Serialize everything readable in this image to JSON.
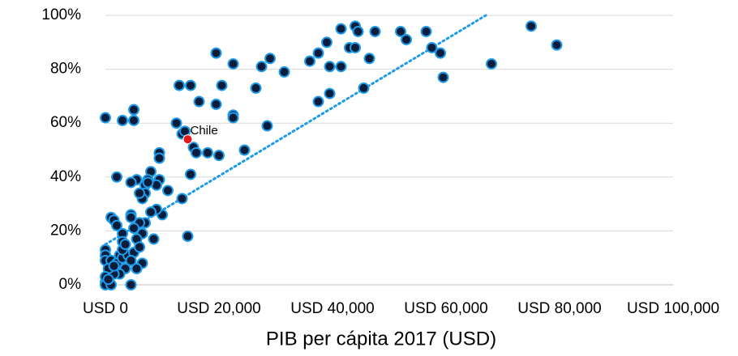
{
  "chart_data": {
    "type": "scatter",
    "x_label": "PIB per cápita 2017 (USD)",
    "x": [
      0,
      3000,
      5000,
      5000,
      2000,
      13000,
      15000,
      19500,
      22500,
      16500,
      19500,
      20500,
      22500,
      22500,
      26500,
      27500,
      29000,
      31500,
      36000,
      37500,
      39000,
      39500,
      41500,
      41500,
      43000,
      44000,
      44500,
      44000,
      46500,
      47500,
      45500,
      52000,
      53000,
      56500,
      57500,
      59000,
      59500,
      68000,
      75000,
      79500,
      37500,
      39500,
      28500,
      24500,
      18000,
      20000,
      15500,
      16000,
      12500,
      13500,
      14000,
      15000,
      13500,
      14500,
      9500,
      9500,
      9500,
      9000,
      8000,
      7500,
      7000,
      7500,
      5500,
      4500,
      11000,
      10000,
      9000,
      8000,
      7000,
      6500,
      6000,
      1000,
      1500,
      2000,
      4500,
      4500,
      7000,
      6000,
      5000,
      6500,
      5500,
      8500,
      3000,
      3000,
      2500,
      0,
      0,
      0,
      1000,
      2000,
      3000,
      4000,
      5000,
      6000,
      6500,
      5500,
      4500,
      3500,
      2500,
      1500,
      500,
      0,
      0,
      1000,
      4500,
      0,
      500,
      1500,
      3000,
      3500
    ],
    "values": [
      62,
      61,
      61,
      65,
      40,
      74,
      74,
      86,
      82,
      68,
      67,
      74,
      63,
      62,
      73,
      81,
      84,
      79,
      83,
      86,
      90,
      81,
      81,
      95,
      88,
      96,
      94,
      88,
      84,
      94,
      73,
      94,
      91,
      94,
      88,
      86,
      77,
      82,
      96,
      89,
      68,
      71,
      59,
      50,
      49,
      48,
      51,
      49,
      60,
      56,
      57,
      41,
      32,
      18,
      49,
      47,
      39,
      37,
      42,
      39,
      37,
      38,
      39,
      38,
      35,
      26,
      28,
      27,
      34,
      32,
      34,
      25,
      24,
      22,
      26,
      25,
      23,
      23,
      21,
      19,
      17,
      17,
      19,
      16,
      11,
      13,
      11,
      9,
      9,
      8,
      10,
      11,
      12,
      14,
      8,
      6,
      9,
      6,
      4,
      4,
      6,
      1,
      0,
      0,
      0,
      3,
      2,
      7,
      13,
      15
    ],
    "marker_color": "#0b1d3a",
    "marker_edge": "#1e9be8",
    "annotation": {
      "text": "Chile",
      "x": 14500,
      "y": 54,
      "color": "#e8191e"
    },
    "trendline": {
      "x": [
        0,
        67000
      ],
      "y": [
        15,
        100
      ],
      "color": "#1e9be8"
    },
    "xlim": [
      0,
      100000
    ],
    "xticks": [
      {
        "value": 0,
        "label": "USD 0"
      },
      {
        "value": 20000,
        "label": "USD 20,000"
      },
      {
        "value": 40000,
        "label": "USD 40,000"
      },
      {
        "value": 60000,
        "label": "USD 60,000"
      },
      {
        "value": 80000,
        "label": "USD 80,000"
      },
      {
        "value": 100000,
        "label": "USD 100,000"
      }
    ],
    "ylim": [
      0,
      100
    ],
    "yticks": [
      {
        "value": 0,
        "label": "0%"
      },
      {
        "value": 20,
        "label": "20%"
      },
      {
        "value": 40,
        "label": "40%"
      },
      {
        "value": 60,
        "label": "60%"
      },
      {
        "value": 80,
        "label": "80%"
      },
      {
        "value": 100,
        "label": "100%"
      }
    ],
    "grid": true
  }
}
